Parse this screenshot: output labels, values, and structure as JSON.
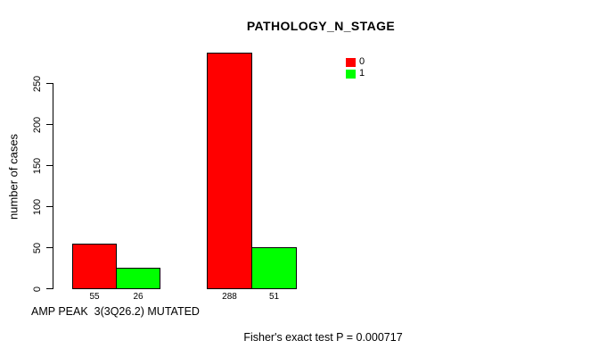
{
  "page": {
    "background": "#FFFFFF"
  },
  "chart_data": {
    "type": "bar",
    "title": "PATHOLOGY_N_STAGE",
    "ylabel": "number of cases",
    "xlabel": "AMP PEAK  3(3Q26.2) MUTATED",
    "series": [
      {
        "name": "0",
        "color": "#FF0000",
        "values": [
          55,
          288
        ]
      },
      {
        "name": "1",
        "color": "#00FF00",
        "values": [
          26,
          51
        ]
      }
    ],
    "bar_labels": [
      [
        "55",
        "26"
      ],
      [
        "288",
        "51"
      ]
    ],
    "yticks": [
      0,
      50,
      100,
      150,
      200,
      250
    ],
    "ylim": [
      0,
      288
    ],
    "grid": false,
    "legend": {
      "position": "top-right",
      "entries": [
        {
          "label": "0",
          "color": "#FF0000"
        },
        {
          "label": "1",
          "color": "#00FF00"
        }
      ]
    },
    "annotation": "Fisher's exact test P = 0.000717"
  }
}
